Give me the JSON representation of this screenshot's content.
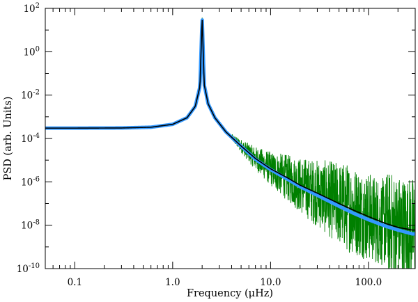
{
  "chart_data": {
    "type": "line",
    "title": "",
    "xlabel": "Frequency (μHz)",
    "ylabel": "PSD (arb. Units)",
    "x_scale": "log",
    "y_scale": "log",
    "xlim": [
      0.05,
      300
    ],
    "ylim": [
      1e-10,
      100
    ],
    "grid": false,
    "legend": "none",
    "x_ticks": [
      {
        "value": 0.1,
        "label": "0.1"
      },
      {
        "value": 1.0,
        "label": "1.0"
      },
      {
        "value": 10.0,
        "label": "10.0"
      },
      {
        "value": 100.0,
        "label": "100.0"
      }
    ],
    "y_ticks": [
      {
        "value": 1e-10,
        "base": "10",
        "exp": "-10"
      },
      {
        "value": 1e-08,
        "base": "10",
        "exp": "-8"
      },
      {
        "value": 1e-06,
        "base": "10",
        "exp": "-6"
      },
      {
        "value": 0.0001,
        "base": "10",
        "exp": "-4"
      },
      {
        "value": 0.01,
        "base": "10",
        "exp": "-2"
      },
      {
        "value": 1,
        "base": "10",
        "exp": "0"
      },
      {
        "value": 100,
        "base": "10",
        "exp": "2"
      }
    ],
    "series": [
      {
        "color": "#008000",
        "x": [
          0.05,
          0.1,
          0.3,
          0.6,
          1.0,
          1.4,
          1.7,
          1.9,
          2.0,
          2.1,
          2.3,
          2.7,
          3.5,
          5,
          7,
          10,
          15,
          20,
          30,
          50,
          70,
          100,
          150,
          200,
          280
        ],
        "y": [
          0.0003,
          0.0003,
          0.000305,
          0.00033,
          0.00045,
          0.0009,
          0.003,
          0.025,
          40,
          0.03,
          0.004,
          0.0009,
          0.0002,
          4.5e-05,
          1.2e-05,
          4e-06,
          1.5e-06,
          7e-07,
          3e-07,
          1e-07,
          5e-08,
          2.5e-08,
          1.2e-08,
          8e-09,
          6e-09
        ]
      },
      {
        "color": "#3399ff",
        "x": [
          0.05,
          0.1,
          0.3,
          0.6,
          1.0,
          1.4,
          1.7,
          1.9,
          2.0,
          2.1,
          2.3,
          2.7,
          3.5,
          5,
          7,
          10,
          15,
          20,
          30,
          50,
          70,
          100,
          150,
          200,
          280
        ],
        "y": [
          0.0003,
          0.0003,
          0.000305,
          0.00033,
          0.00045,
          0.0009,
          0.003,
          0.025,
          40,
          0.03,
          0.004,
          0.0009,
          0.0002,
          4.4e-05,
          1.1e-05,
          3.7e-06,
          1.3e-06,
          6e-07,
          2.4e-07,
          7.5e-08,
          3.6e-08,
          1.8e-08,
          9e-09,
          6e-09,
          4e-09
        ]
      },
      {
        "color": "#000000",
        "x": [
          0.05,
          0.1,
          0.3,
          0.6,
          1.0,
          1.4,
          1.7,
          1.9,
          2.0,
          2.1,
          2.3,
          2.7,
          3.5,
          5,
          7,
          10,
          15,
          20,
          30,
          50,
          70,
          100,
          150,
          200,
          280
        ],
        "y": [
          0.0003,
          0.0003,
          0.000305,
          0.00033,
          0.00045,
          0.0009,
          0.003,
          0.025,
          40,
          0.03,
          0.004,
          0.0009,
          0.0002,
          4.5e-05,
          1.2e-05,
          4e-06,
          1.5e-06,
          7e-07,
          3e-07,
          1e-07,
          5e-08,
          2.5e-08,
          1.2e-08,
          8e-09,
          6e-09
        ]
      }
    ]
  }
}
